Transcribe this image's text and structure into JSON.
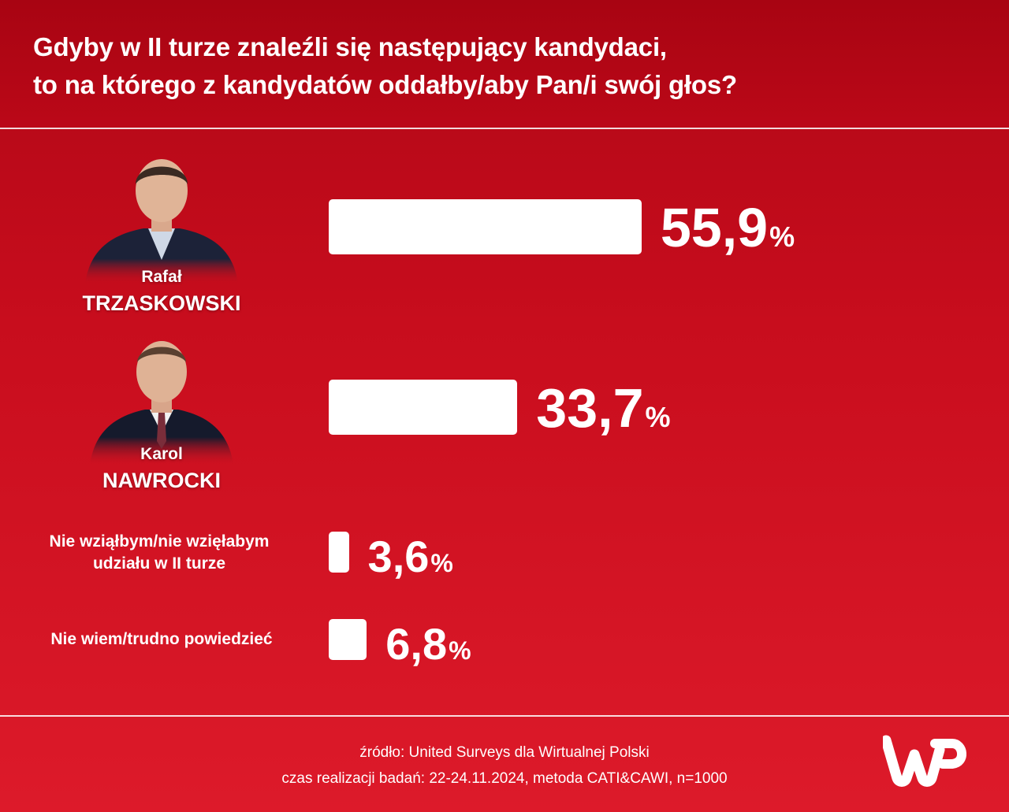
{
  "title": {
    "line1": "Gdyby w II turze znaleźli się następujący kandydaci,",
    "line2": "to na którego z kandydatów oddałby/aby Pan/i swój głos?"
  },
  "options": [
    {
      "first_name": "Rafał",
      "last_name": "TRZASKOWSKI",
      "value_text": "55,9",
      "percent_sign": "%"
    },
    {
      "first_name": "Karol",
      "last_name": "NAWROCKI",
      "value_text": "33,7",
      "percent_sign": "%"
    },
    {
      "label_line1": "Nie wziąłbym/nie wzięłabym",
      "label_line2": "udziału w II turze",
      "value_text": "3,6",
      "percent_sign": "%"
    },
    {
      "label_line1": "Nie wiem/trudno powiedzieć",
      "value_text": "6,8",
      "percent_sign": "%"
    }
  ],
  "chart_data": {
    "type": "bar",
    "orientation": "horizontal",
    "title": "Gdyby w II turze znaleźli się następujący kandydaci, to na którego z kandydatów oddałby/aby Pan/i swój głos?",
    "categories": [
      "Rafał TRZASKOWSKI",
      "Karol NAWROCKI",
      "Nie wziąłbym/nie wzięłabym udziału w II turze",
      "Nie wiem/trudno powiedzieć"
    ],
    "values": [
      55.9,
      33.7,
      3.6,
      6.8
    ],
    "unit": "%",
    "grid": false,
    "legend": "none"
  },
  "footer": {
    "source": "źródło: United Surveys dla Wirtualnej Polski",
    "details": "czas realizacji badań: 22-24.11.2024, metoda CATI&CAWI, n=1000"
  },
  "colors": {
    "background_top": "#b00716",
    "background_bottom": "#dd1a2a",
    "bar": "#ffffff",
    "text": "#ffffff"
  },
  "icons": {
    "logo": "wp-logo"
  }
}
